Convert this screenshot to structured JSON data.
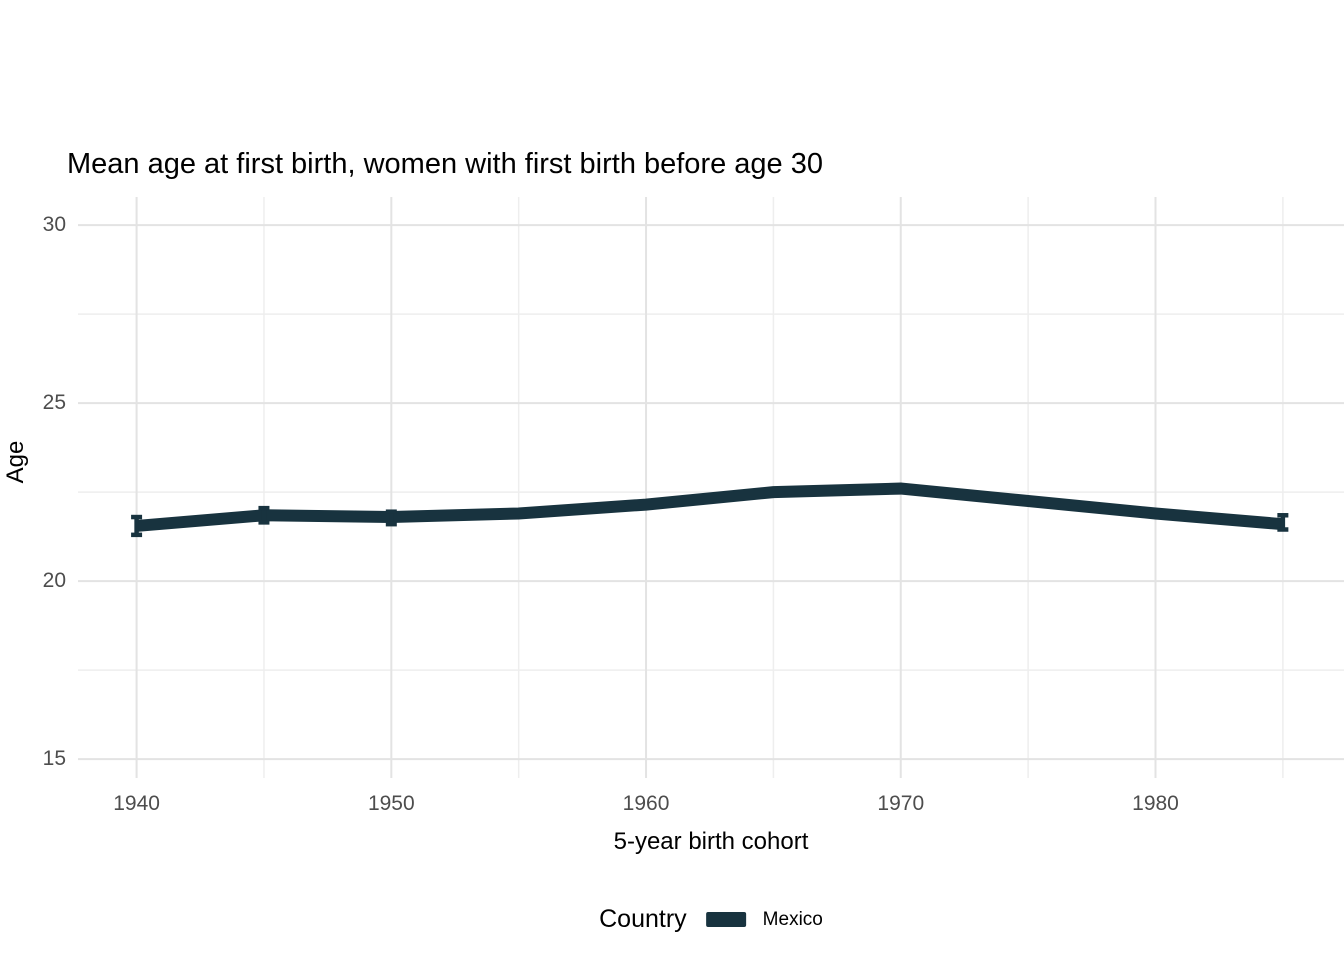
{
  "chart_data": {
    "type": "line",
    "title": "Mean age at first birth, women with first birth before age 30",
    "xlabel": "5-year birth cohort",
    "ylabel": "Age",
    "legend_title": "Country",
    "legend_position": "bottom",
    "grid": "on",
    "x": [
      1940,
      1945,
      1950,
      1955,
      1960,
      1965,
      1970,
      1975,
      1980,
      1985
    ],
    "series": [
      {
        "name": "Mexico",
        "color": "#18333f",
        "values": [
          21.55,
          21.85,
          21.8,
          21.9,
          22.15,
          22.5,
          22.6,
          22.25,
          21.9,
          21.6
        ],
        "error_bars": [
          {
            "x": 1940,
            "lo": 21.3,
            "hi": 21.8
          },
          {
            "x": 1945,
            "lo": 21.65,
            "hi": 22.05
          },
          {
            "x": 1950,
            "lo": 21.6,
            "hi": 21.95
          },
          {
            "x": 1985,
            "lo": 21.45,
            "hi": 21.85
          }
        ]
      }
    ],
    "x_ticks": [
      1940,
      1950,
      1960,
      1970,
      1980
    ],
    "x_minor_ticks": [
      1945,
      1955,
      1965,
      1975,
      1985
    ],
    "y_ticks": [
      15,
      20,
      25,
      30
    ],
    "y_minor_ticks": [
      17.5,
      22.5,
      27.5
    ],
    "xlim": [
      1937.7,
      1987.4
    ],
    "ylim": [
      14.47,
      30.79
    ],
    "colors": {
      "background": "#ffffff",
      "grid_major": "#e3e3e3",
      "grid_minor": "#eeeeee",
      "tick_label": "#4d4d4d",
      "text": "#000000"
    }
  }
}
